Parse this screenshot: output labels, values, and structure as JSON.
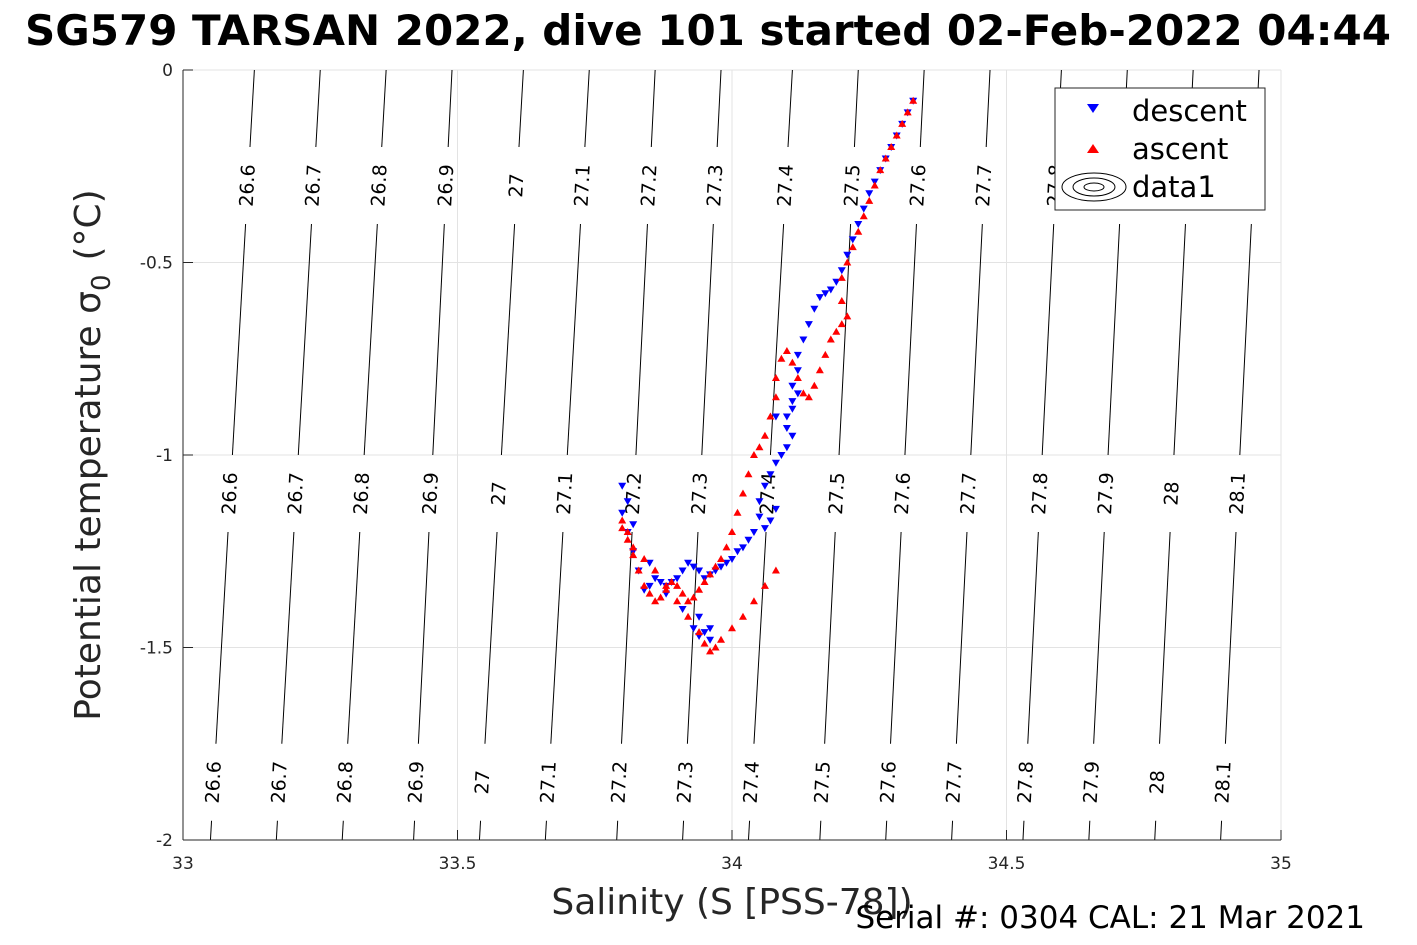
{
  "chart_data": {
    "type": "scatter",
    "title": "SG579 TARSAN 2022, dive 101 started 02-Feb-2022 04:44",
    "xlabel": "Salinity (S [PSS-78])",
    "ylabel": "Potential temperature σ₀ (°C)",
    "ylabel_main": "Potential temperature σ",
    "ylabel_sub": "0",
    "ylabel_unit": "(°C)",
    "footer": "Serial #: 0304  CAL: 21 Mar 2021",
    "xlim": [
      33,
      35
    ],
    "ylim": [
      -2,
      0
    ],
    "xticks": [
      33,
      33.5,
      34,
      34.5,
      35
    ],
    "xtick_labels": [
      "33",
      "33.5",
      "34",
      "34.5",
      "35"
    ],
    "yticks": [
      0,
      -0.5,
      -1,
      -1.5,
      -2
    ],
    "ytick_labels": [
      "0",
      "-0.5",
      "-1",
      "-1.5",
      "-2"
    ],
    "grid": true,
    "legend": {
      "placement": "top-right",
      "entries": [
        "descent",
        "ascent",
        "data1"
      ]
    },
    "colors": {
      "descent": "#0000ff",
      "ascent": "#ff0000",
      "contour": "#000000",
      "grid": "#e3e3e3"
    },
    "isopycnals": {
      "levels": [
        26.6,
        26.7,
        26.8,
        26.9,
        27.0,
        27.1,
        27.2,
        27.3,
        27.4,
        27.5,
        27.6,
        27.7,
        27.8,
        27.9,
        28.0,
        28.1
      ],
      "level_labels": [
        "26.6",
        "26.7",
        "26.8",
        "26.9",
        "27",
        "27.1",
        "27.2",
        "27.3",
        "27.4",
        "27.5",
        "27.6",
        "27.7",
        "27.8",
        "27.9",
        "28",
        "28.1"
      ],
      "salinity_at_top": [
        33.13,
        33.25,
        33.37,
        33.49,
        33.62,
        33.74,
        33.86,
        33.98,
        34.11,
        34.23,
        34.35,
        34.47,
        34.6,
        34.72,
        34.84,
        34.96
      ],
      "salinity_at_bottom": [
        33.05,
        33.17,
        33.29,
        33.42,
        33.54,
        33.66,
        33.79,
        33.91,
        34.03,
        34.16,
        34.28,
        34.4,
        34.53,
        34.65,
        34.77,
        34.89
      ]
    },
    "series": [
      {
        "name": "descent",
        "marker": "triangle-down",
        "x": [
          34.33,
          34.32,
          34.31,
          34.3,
          34.29,
          34.28,
          34.27,
          34.26,
          34.25,
          34.24,
          34.23,
          34.22,
          34.21,
          34.2,
          34.19,
          34.18,
          34.17,
          34.16,
          34.15,
          34.14,
          34.13,
          34.12,
          34.12,
          34.11,
          34.11,
          34.1,
          34.1,
          34.11,
          34.12,
          34.11,
          34.1,
          34.09,
          34.08,
          34.08,
          34.07,
          34.06,
          34.05,
          34.08,
          34.07,
          34.06,
          34.05,
          34.04,
          34.03,
          34.02,
          34.01,
          34.0,
          33.99,
          33.98,
          33.97,
          33.96,
          33.95,
          33.94,
          33.93,
          33.92,
          33.91,
          33.9,
          33.89,
          33.88,
          33.87,
          33.86,
          33.85,
          33.84,
          33.83,
          33.82,
          33.81,
          33.8,
          33.8,
          33.81,
          33.82,
          33.85,
          33.88,
          33.91,
          33.93,
          33.94,
          33.95,
          33.96,
          33.94,
          33.96
        ],
        "y": [
          -0.08,
          -0.11,
          -0.14,
          -0.17,
          -0.2,
          -0.23,
          -0.26,
          -0.29,
          -0.32,
          -0.36,
          -0.4,
          -0.44,
          -0.48,
          -0.52,
          -0.55,
          -0.57,
          -0.58,
          -0.59,
          -0.62,
          -0.66,
          -0.7,
          -0.74,
          -0.78,
          -0.82,
          -0.86,
          -0.9,
          -0.93,
          -0.88,
          -0.84,
          -0.95,
          -0.98,
          -1.0,
          -1.02,
          -0.9,
          -1.05,
          -1.08,
          -1.12,
          -1.14,
          -1.17,
          -1.19,
          -1.16,
          -1.2,
          -1.22,
          -1.24,
          -1.25,
          -1.27,
          -1.28,
          -1.29,
          -1.3,
          -1.31,
          -1.32,
          -1.3,
          -1.29,
          -1.28,
          -1.3,
          -1.32,
          -1.33,
          -1.34,
          -1.33,
          -1.32,
          -1.34,
          -1.35,
          -1.3,
          -1.25,
          -1.2,
          -1.15,
          -1.08,
          -1.12,
          -1.18,
          -1.28,
          -1.36,
          -1.4,
          -1.45,
          -1.47,
          -1.46,
          -1.45,
          -1.42,
          -1.48
        ]
      },
      {
        "name": "ascent",
        "marker": "triangle-up",
        "x": [
          34.33,
          34.32,
          34.31,
          34.3,
          34.29,
          34.28,
          34.27,
          34.26,
          34.25,
          34.24,
          34.23,
          34.22,
          34.21,
          34.2,
          34.2,
          34.21,
          34.2,
          34.19,
          34.18,
          34.17,
          34.16,
          34.15,
          34.14,
          34.13,
          34.12,
          34.11,
          34.1,
          34.09,
          34.08,
          34.08,
          34.07,
          34.06,
          34.05,
          34.04,
          34.03,
          34.02,
          34.01,
          34.0,
          33.99,
          33.98,
          33.97,
          33.96,
          33.95,
          33.94,
          33.93,
          33.92,
          33.91,
          33.9,
          33.89,
          33.88,
          33.87,
          33.86,
          33.85,
          33.84,
          33.83,
          33.82,
          33.81,
          33.8,
          33.8,
          33.81,
          33.82,
          33.84,
          33.86,
          33.88,
          33.9,
          33.92,
          33.94,
          33.95,
          33.96,
          33.97,
          33.98,
          34.0,
          34.02,
          34.04,
          34.06,
          34.08
        ],
        "y": [
          -0.08,
          -0.11,
          -0.14,
          -0.17,
          -0.2,
          -0.23,
          -0.26,
          -0.3,
          -0.34,
          -0.38,
          -0.42,
          -0.46,
          -0.5,
          -0.54,
          -0.6,
          -0.64,
          -0.66,
          -0.68,
          -0.7,
          -0.74,
          -0.78,
          -0.82,
          -0.85,
          -0.84,
          -0.8,
          -0.76,
          -0.73,
          -0.75,
          -0.8,
          -0.85,
          -0.9,
          -0.95,
          -0.98,
          -1.0,
          -1.05,
          -1.1,
          -1.15,
          -1.2,
          -1.24,
          -1.27,
          -1.29,
          -1.31,
          -1.33,
          -1.35,
          -1.37,
          -1.38,
          -1.36,
          -1.34,
          -1.33,
          -1.35,
          -1.37,
          -1.38,
          -1.36,
          -1.34,
          -1.3,
          -1.26,
          -1.22,
          -1.19,
          -1.17,
          -1.2,
          -1.24,
          -1.27,
          -1.3,
          -1.34,
          -1.38,
          -1.42,
          -1.46,
          -1.49,
          -1.51,
          -1.5,
          -1.48,
          -1.45,
          -1.42,
          -1.38,
          -1.34,
          -1.3
        ]
      }
    ]
  }
}
